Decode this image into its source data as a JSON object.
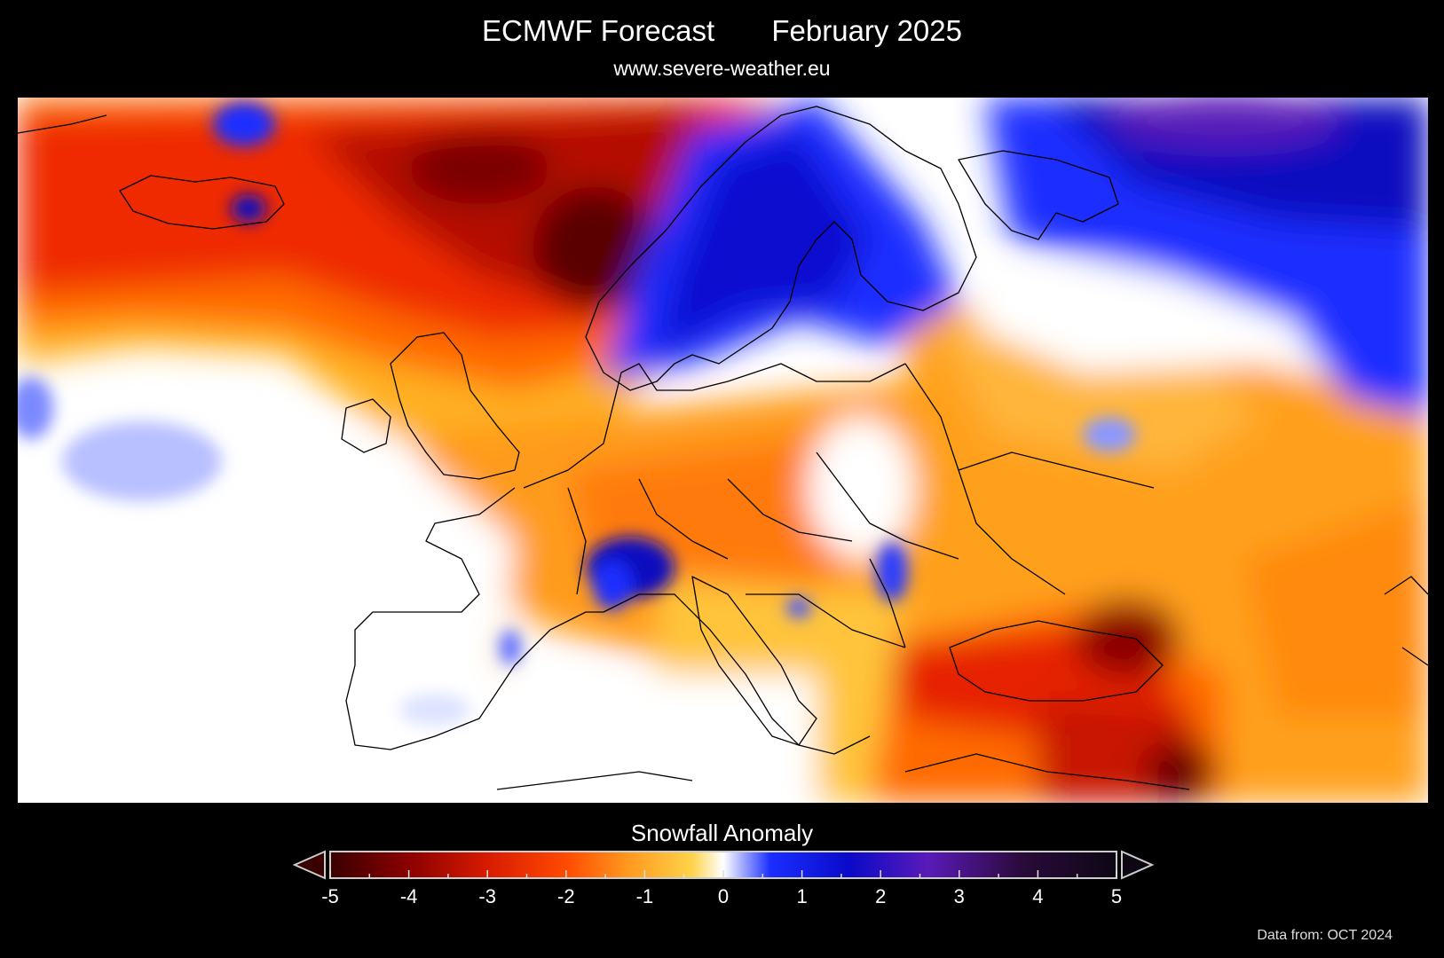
{
  "header": {
    "title": "ECMWF Forecast       February 2025",
    "subtitle": "www.severe-weather.eu"
  },
  "map": {
    "variable": "Snowfall Anomaly",
    "region": "Europe"
  },
  "legend": {
    "title": "Snowfall Anomaly",
    "ticks": [
      "-5",
      "-4",
      "-3",
      "-2",
      "-1",
      "0",
      "1",
      "2",
      "3",
      "4",
      "5"
    ],
    "range": [
      -5,
      5
    ],
    "extend": "both",
    "colors": [
      "#3a0000",
      "#8b0000",
      "#d81b00",
      "#ff4a00",
      "#ff9a1f",
      "#ffd24a",
      "#ffffff",
      "#1a2eff",
      "#0a0ac8",
      "#5a1ab8",
      "#2a0a3a",
      "#0d0714"
    ]
  },
  "footer": {
    "source": "Data from: OCT 2024"
  }
}
